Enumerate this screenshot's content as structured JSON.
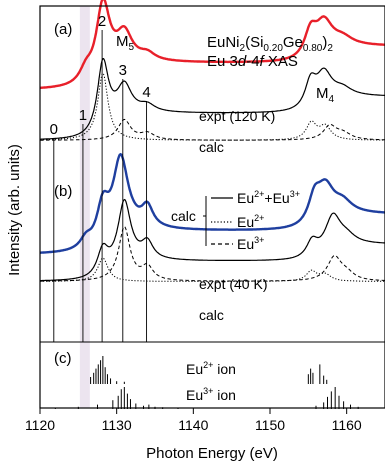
{
  "chart_data": {
    "type": "line",
    "title_line1": "EuNi",
    "title_sub1": "2",
    "title_paren_open": "(Si",
    "title_sub2": "0.20",
    "title_ge": "Ge",
    "title_sub3": "0.80",
    "title_paren_close": ")",
    "title_sub4": "2",
    "title_line2_a": "Eu 3",
    "title_line2_d": "d",
    "title_line2_b": "-4",
    "title_line2_f": "f",
    "title_line2_c": " XAS",
    "xlabel": "Photon Energy (eV)",
    "ylabel": "Intensity (arb. units)",
    "xlim": [
      1120,
      1165
    ],
    "xticks": [
      "1120",
      "1130",
      "1140",
      "1150",
      "1160"
    ],
    "xtick_values": [
      1120,
      1130,
      1140,
      1150,
      1160
    ],
    "edge_M5": "M",
    "edge_M5_sub": "5",
    "edge_M4": "M",
    "edge_M4_sub": "4",
    "panel_a": "(a)",
    "panel_b": "(b)",
    "panel_c": "(c)",
    "markers": [
      {
        "label": "0",
        "x": 1121.8
      },
      {
        "label": "1",
        "x": 1125.6
      },
      {
        "label": "2",
        "x": 1128.1
      },
      {
        "label": "3",
        "x": 1130.8
      },
      {
        "label": "4",
        "x": 1133.9
      }
    ],
    "shaded_band": [
      1125.2,
      1126.5
    ],
    "series_labels": {
      "expt_a": "expt (120 K)",
      "calc_a": "calc",
      "expt_b": "expt (40 K)",
      "calc_b": "calc"
    },
    "legend": {
      "title": "calc",
      "items": [
        {
          "text": "Eu",
          "sup": "2+",
          "text2": "+Eu",
          "sup2": "3+",
          "style": "solid"
        },
        {
          "text": "Eu",
          "sup": "2+",
          "text2": "",
          "sup2": "",
          "style": "dotted"
        },
        {
          "text": "Eu",
          "sup": "3+",
          "text2": "",
          "sup2": "",
          "style": "dashed"
        }
      ]
    },
    "ion_labels": {
      "eu2": "Eu",
      "eu2_sup": "2+",
      "eu2_tail": " ion",
      "eu3": "Eu",
      "eu3_sup": "3+",
      "eu3_tail": " ion"
    },
    "colors": {
      "expt_a": "#e8202a",
      "expt_b": "#1f3f9f",
      "calc": "#000000",
      "band": "#ece4ef"
    },
    "series": [
      {
        "name": "expt (120 K)",
        "baseline": 0.75,
        "peak_scale": 1.0,
        "peaks": [
          [
            1126.0,
            0.04,
            1.0
          ],
          [
            1128.2,
            0.23,
            1.1
          ],
          [
            1131.0,
            0.08,
            1.2
          ],
          [
            1134.0,
            0.02,
            1.2
          ],
          [
            1155.3,
            0.08,
            1.0
          ],
          [
            1157.0,
            0.08,
            1.3
          ],
          [
            1159.5,
            0.02,
            1.5
          ]
        ],
        "step": [
          [
            1129.0,
            0.08
          ],
          [
            1156.5,
            0.05
          ]
        ]
      },
      {
        "name": "calc (a)",
        "baseline": 0.6,
        "peaks": [
          [
            1128.2,
            0.21,
            0.9
          ],
          [
            1131.0,
            0.08,
            1.1
          ],
          [
            1134.0,
            0.02,
            1.2
          ],
          [
            1155.3,
            0.08,
            0.9
          ],
          [
            1157.0,
            0.08,
            1.2
          ],
          [
            1159.5,
            0.02,
            1.4
          ]
        ],
        "step": [
          [
            1129.0,
            0.08
          ],
          [
            1156.5,
            0.05
          ]
        ]
      },
      {
        "name": "calc Eu2+ (a)",
        "baseline": 0.6,
        "peaks": [
          [
            1128.2,
            0.2,
            0.8
          ],
          [
            1155.4,
            0.05,
            0.8
          ],
          [
            1157.2,
            0.04,
            0.9
          ]
        ]
      },
      {
        "name": "calc Eu3+ (a)",
        "baseline": 0.6,
        "peaks": [
          [
            1131.0,
            0.06,
            1.0
          ],
          [
            1134.0,
            0.02,
            1.1
          ],
          [
            1157.8,
            0.04,
            1.0
          ],
          [
            1159.5,
            0.02,
            1.3
          ]
        ]
      },
      {
        "name": "expt (40 K)",
        "baseline": 0.26,
        "peaks": [
          [
            1126.0,
            0.03,
            0.9
          ],
          [
            1128.2,
            0.12,
            1.0
          ],
          [
            1130.5,
            0.22,
            1.2
          ],
          [
            1134.0,
            0.06,
            0.9
          ],
          [
            1155.8,
            0.08,
            1.0
          ],
          [
            1157.2,
            0.09,
            1.3
          ],
          [
            1159.5,
            0.03,
            1.4
          ]
        ],
        "step": [
          [
            1129.5,
            0.07
          ],
          [
            1157.0,
            0.05
          ]
        ]
      },
      {
        "name": "calc (b)",
        "baseline": 0.18,
        "peaks": [
          [
            1128.2,
            0.08,
            0.9
          ],
          [
            1131.0,
            0.18,
            1.0
          ],
          [
            1134.0,
            0.05,
            0.9
          ],
          [
            1155.5,
            0.05,
            0.9
          ],
          [
            1158.2,
            0.09,
            1.2
          ],
          [
            1160.0,
            0.02,
            1.3
          ]
        ],
        "step": [
          [
            1129.5,
            0.06
          ],
          [
            1157.0,
            0.05
          ]
        ]
      },
      {
        "name": "calc Eu2+ (b)",
        "baseline": 0.18,
        "peaks": [
          [
            1128.2,
            0.07,
            0.8
          ],
          [
            1155.4,
            0.03,
            0.8
          ],
          [
            1157.2,
            0.02,
            0.9
          ]
        ]
      },
      {
        "name": "calc Eu3+ (b)",
        "baseline": 0.18,
        "peaks": [
          [
            1131.0,
            0.16,
            0.9
          ],
          [
            1134.0,
            0.04,
            0.9
          ],
          [
            1158.4,
            0.07,
            1.1
          ],
          [
            1160.0,
            0.02,
            1.2
          ]
        ]
      }
    ],
    "sticks_eu2": [
      [
        1126.6,
        0.25
      ],
      [
        1127.0,
        0.4
      ],
      [
        1127.3,
        0.55
      ],
      [
        1127.6,
        0.7
      ],
      [
        1127.9,
        0.85
      ],
      [
        1128.2,
        1.0
      ],
      [
        1128.5,
        0.6
      ],
      [
        1128.8,
        0.35
      ],
      [
        1129.2,
        0.2
      ],
      [
        1130.0,
        0.1
      ],
      [
        1131.0,
        0.08
      ],
      [
        1155.0,
        0.35
      ],
      [
        1155.3,
        0.55
      ],
      [
        1155.6,
        0.4
      ],
      [
        1156.5,
        0.7
      ],
      [
        1157.0,
        0.3
      ],
      [
        1157.4,
        0.15
      ]
    ],
    "sticks_eu3": [
      [
        1122.0,
        0.05
      ],
      [
        1125.0,
        0.1
      ],
      [
        1127.5,
        0.2
      ],
      [
        1129.5,
        0.4
      ],
      [
        1130.2,
        0.6
      ],
      [
        1130.6,
        0.9
      ],
      [
        1131.0,
        1.0
      ],
      [
        1131.4,
        0.7
      ],
      [
        1131.8,
        0.45
      ],
      [
        1132.5,
        0.25
      ],
      [
        1133.5,
        0.15
      ],
      [
        1134.2,
        0.2
      ],
      [
        1135.0,
        0.1
      ],
      [
        1136.0,
        0.08
      ],
      [
        1138.0,
        0.05
      ],
      [
        1156.0,
        0.15
      ],
      [
        1157.0,
        0.3
      ],
      [
        1157.5,
        0.55
      ],
      [
        1158.0,
        0.8
      ],
      [
        1158.5,
        1.0
      ],
      [
        1159.0,
        0.6
      ],
      [
        1159.6,
        0.35
      ],
      [
        1160.5,
        0.2
      ],
      [
        1161.5,
        0.1
      ]
    ]
  }
}
